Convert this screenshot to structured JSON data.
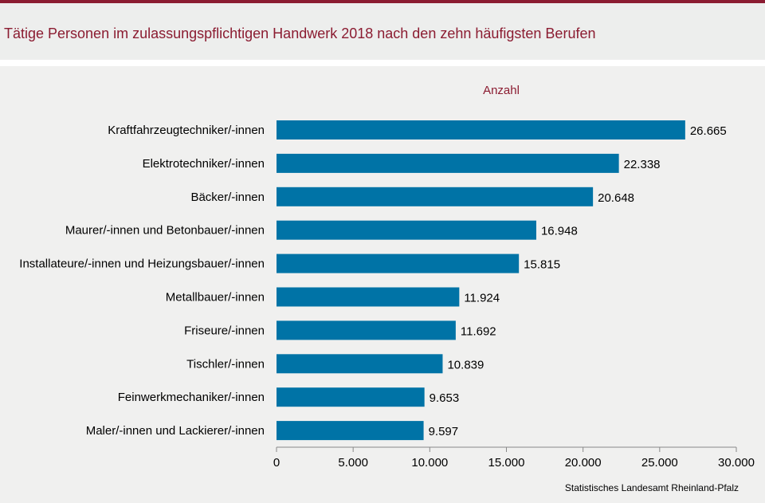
{
  "header": {
    "title": "Tätige Personen im zulassungspflichtigen Handwerk 2018 nach den zehn häufigsten Berufen"
  },
  "chart_data": {
    "type": "bar",
    "orientation": "horizontal",
    "title": "Tätige Personen im zulassungspflichtigen Handwerk 2018 nach den zehn häufigsten Berufen",
    "xlabel": "Anzahl",
    "ylabel": "",
    "categories": [
      "Kraftfahrzeugtechniker/-innen",
      "Elektrotechniker/-innen",
      "Bäcker/-innen",
      "Maurer/-innen und Betonbauer/-innen",
      "Installateure/-innen und Heizungsbauer/-innen",
      "Metallbauer/-innen",
      "Friseure/-innen",
      "Tischler/-innen",
      "Feinwerkmechaniker/-innen",
      "Maler/-innen und Lackierer/-innen"
    ],
    "values": [
      26665,
      22338,
      20648,
      16948,
      15815,
      11924,
      11692,
      10839,
      9653,
      9597
    ],
    "value_labels": [
      "26.665",
      "22.338",
      "20.648",
      "16.948",
      "15.815",
      "11.924",
      "11.692",
      "10.839",
      "9.653",
      "9.597"
    ],
    "xlim": [
      0,
      30000
    ],
    "xticks": [
      0,
      5000,
      10000,
      15000,
      20000,
      25000,
      30000
    ],
    "xtick_labels": [
      "0",
      "5.000",
      "10.000",
      "15.000",
      "20.000",
      "25.000",
      "30.000"
    ],
    "bar_color": "#0073a6",
    "grid": false,
    "source": "Statistisches Landesamt  Rheinland-Pfalz"
  }
}
